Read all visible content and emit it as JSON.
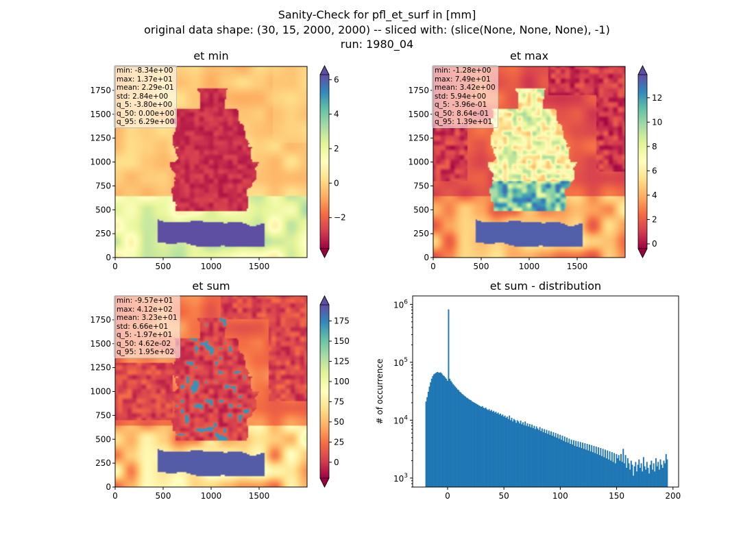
{
  "figure": {
    "title_line1": "Sanity-Check for pfl_et_surf in [mm]",
    "title_line2": "original data shape: (30, 15, 2000, 2000) -- sliced with: (slice(None, None, None), -1)",
    "title_line3": "run: 1980_04"
  },
  "chart_data": [
    {
      "type": "heatmap",
      "title": "et min",
      "colormap": "Spectral",
      "x_ticks": [
        "0",
        "500",
        "1000",
        "1500"
      ],
      "y_ticks": [
        "0",
        "250",
        "500",
        "750",
        "1000",
        "1250",
        "1500",
        "1750"
      ],
      "xlim": [
        0,
        2000
      ],
      "ylim": [
        0,
        2000
      ],
      "colorbar": {
        "range": [
          -3.8,
          6.29
        ],
        "ticks": [
          -2,
          0,
          2,
          4,
          6
        ],
        "tick_labels": [
          "−2",
          "0",
          "2",
          "4",
          "6"
        ],
        "extend": "both"
      },
      "stats": [
        "min: -8.34e+00",
        "max: 1.37e+01",
        "mean: 2.29e-01",
        "std: 2.84e+00",
        "q_5: -3.80e+00",
        "q_50: 0.00e+00",
        "q_95: 6.29e+00"
      ]
    },
    {
      "type": "heatmap",
      "title": "et max",
      "colormap": "Spectral",
      "x_ticks": [
        "0",
        "500",
        "1000",
        "1500"
      ],
      "y_ticks": [
        "0",
        "250",
        "500",
        "750",
        "1000",
        "1250",
        "1500",
        "1750"
      ],
      "xlim": [
        0,
        2000
      ],
      "ylim": [
        0,
        2000
      ],
      "colorbar": {
        "range": [
          -0.396,
          13.9
        ],
        "ticks": [
          0,
          2,
          4,
          6,
          8,
          10,
          12
        ],
        "tick_labels": [
          "0",
          "2",
          "4",
          "6",
          "8",
          "10",
          "12"
        ],
        "extend": "both"
      },
      "stats": [
        "min: -1.28e+00",
        "max: 7.49e+01",
        "mean: 3.42e+00",
        "std: 5.94e+00",
        "q_5: -3.96e-01",
        "q_50: 8.64e-01",
        "q_95: 1.39e+01"
      ]
    },
    {
      "type": "heatmap",
      "title": "et sum",
      "colormap": "Spectral",
      "x_ticks": [
        "0",
        "500",
        "1000",
        "1500"
      ],
      "y_ticks": [
        "0",
        "250",
        "500",
        "750",
        "1000",
        "1250",
        "1500",
        "1750"
      ],
      "xlim": [
        0,
        2000
      ],
      "ylim": [
        0,
        2000
      ],
      "colorbar": {
        "range": [
          -19.7,
          195
        ],
        "ticks": [
          0,
          25,
          50,
          75,
          100,
          125,
          150,
          175
        ],
        "tick_labels": [
          "0",
          "25",
          "50",
          "75",
          "100",
          "125",
          "150",
          "175"
        ],
        "extend": "both"
      },
      "stats": [
        "min: -9.57e+01",
        "max: 4.12e+02",
        "mean: 3.23e+01",
        "std: 6.66e+01",
        "q_5: -1.97e+01",
        "q_50: 4.62e-02",
        "q_95: 1.95e+02"
      ]
    },
    {
      "type": "bar",
      "title": "et sum - distribution",
      "xlabel": "",
      "ylabel": "# of occurrence",
      "yscale": "log",
      "xlim": [
        -31,
        205
      ],
      "ylim": [
        700,
        1400000
      ],
      "x_ticks": [
        "0",
        "50",
        "100",
        "150",
        "200"
      ],
      "y_tick_labels": [
        "10^3",
        "10^4",
        "10^5",
        "10^6"
      ],
      "color": "#1f77b4",
      "bin_width": 1.0,
      "bins": [
        [
          -19.7,
          21000
        ],
        [
          -18.7,
          25000
        ],
        [
          -17.7,
          31000
        ],
        [
          -16.7,
          38000
        ],
        [
          -15.7,
          45000
        ],
        [
          -14.7,
          52000
        ],
        [
          -13.7,
          58000
        ],
        [
          -12.7,
          62000
        ],
        [
          -11.7,
          64000
        ],
        [
          -10.7,
          66000
        ],
        [
          -9.7,
          68000
        ],
        [
          -8.7,
          67000
        ],
        [
          -7.7,
          66000
        ],
        [
          -6.7,
          67000
        ],
        [
          -5.7,
          64000
        ],
        [
          -4.7,
          60000
        ],
        [
          -3.7,
          58000
        ],
        [
          -2.7,
          55000
        ],
        [
          -1.7,
          52000
        ],
        [
          -0.7,
          48000
        ],
        [
          0.3,
          820000
        ],
        [
          1.3,
          52000
        ],
        [
          2.3,
          48000
        ],
        [
          3.3,
          45000
        ],
        [
          4.3,
          42000
        ],
        [
          5.3,
          40000
        ],
        [
          6.3,
          38000
        ],
        [
          7.3,
          36000
        ],
        [
          8.3,
          34000
        ],
        [
          9.3,
          33000
        ],
        [
          10.3,
          31000
        ],
        [
          11.3,
          30000
        ],
        [
          12.3,
          28500
        ],
        [
          13.3,
          27500
        ],
        [
          14.3,
          26500
        ],
        [
          15.3,
          25500
        ],
        [
          16.3,
          24500
        ],
        [
          17.3,
          24000
        ],
        [
          18.3,
          23000
        ],
        [
          19.3,
          22500
        ],
        [
          20.3,
          22000
        ],
        [
          21.3,
          21000
        ],
        [
          22.3,
          20500
        ],
        [
          23.3,
          20000
        ],
        [
          24.3,
          19500
        ],
        [
          25.3,
          19000
        ],
        [
          26.3,
          18500
        ],
        [
          27.3,
          18000
        ],
        [
          28.3,
          17500
        ],
        [
          29.3,
          17000
        ],
        [
          30.3,
          17500
        ],
        [
          31.3,
          16500
        ],
        [
          32.3,
          16000
        ],
        [
          33.3,
          16500
        ],
        [
          34.3,
          15500
        ],
        [
          35.3,
          15000
        ],
        [
          36.3,
          15500
        ],
        [
          37.3,
          14500
        ],
        [
          38.3,
          15000
        ],
        [
          39.3,
          14000
        ],
        [
          40.3,
          14500
        ],
        [
          41.3,
          13500
        ],
        [
          42.3,
          14000
        ],
        [
          43.3,
          13000
        ],
        [
          44.3,
          13500
        ],
        [
          45.3,
          12500
        ],
        [
          46.3,
          13000
        ],
        [
          47.3,
          12000
        ],
        [
          48.3,
          12500
        ],
        [
          49.3,
          11500
        ],
        [
          50.3,
          12000
        ],
        [
          51.3,
          11000
        ],
        [
          52.3,
          11500
        ],
        [
          53.3,
          10500
        ],
        [
          54.3,
          12000
        ],
        [
          55.3,
          10000
        ],
        [
          56.3,
          11000
        ],
        [
          57.3,
          9500
        ],
        [
          58.3,
          10500
        ],
        [
          59.3,
          10000
        ],
        [
          60.3,
          9000
        ],
        [
          61.3,
          10000
        ],
        [
          62.3,
          9500
        ],
        [
          63.3,
          8800
        ],
        [
          64.3,
          9800
        ],
        [
          65.3,
          8500
        ],
        [
          66.3,
          9200
        ],
        [
          67.3,
          8200
        ],
        [
          68.3,
          9500
        ],
        [
          69.3,
          8000
        ],
        [
          70.3,
          8800
        ],
        [
          71.3,
          7800
        ],
        [
          72.3,
          8600
        ],
        [
          73.3,
          7500
        ],
        [
          74.3,
          8400
        ],
        [
          75.3,
          7300
        ],
        [
          76.3,
          8000
        ],
        [
          77.3,
          7000
        ],
        [
          78.3,
          7800
        ],
        [
          79.3,
          7200
        ],
        [
          80.3,
          6800
        ],
        [
          81.3,
          7600
        ],
        [
          82.3,
          6500
        ],
        [
          83.3,
          7200
        ],
        [
          84.3,
          6200
        ],
        [
          85.3,
          7000
        ],
        [
          86.3,
          6000
        ],
        [
          87.3,
          6800
        ],
        [
          88.3,
          5800
        ],
        [
          89.3,
          6600
        ],
        [
          90.3,
          5600
        ],
        [
          91.3,
          6400
        ],
        [
          92.3,
          5400
        ],
        [
          93.3,
          6200
        ],
        [
          94.3,
          5200
        ],
        [
          95.3,
          6000
        ],
        [
          96.3,
          5000
        ],
        [
          97.3,
          5800
        ],
        [
          98.3,
          4800
        ],
        [
          99.3,
          5600
        ],
        [
          100.3,
          4600
        ],
        [
          101.3,
          5400
        ],
        [
          102.3,
          4400
        ],
        [
          103.3,
          5200
        ],
        [
          104.3,
          4200
        ],
        [
          105.3,
          5000
        ],
        [
          106.3,
          4100
        ],
        [
          107.3,
          4800
        ],
        [
          108.3,
          3900
        ],
        [
          109.3,
          4600
        ],
        [
          110.3,
          3800
        ],
        [
          111.3,
          4500
        ],
        [
          112.3,
          3600
        ],
        [
          113.3,
          4400
        ],
        [
          114.3,
          3500
        ],
        [
          115.3,
          4300
        ],
        [
          116.3,
          3400
        ],
        [
          117.3,
          4200
        ],
        [
          118.3,
          3300
        ],
        [
          119.3,
          4100
        ],
        [
          120.3,
          3200
        ],
        [
          121.3,
          4000
        ],
        [
          122.3,
          3100
        ],
        [
          123.3,
          3900
        ],
        [
          124.3,
          3000
        ],
        [
          125.3,
          3800
        ],
        [
          126.3,
          2900
        ],
        [
          127.3,
          3700
        ],
        [
          128.3,
          2800
        ],
        [
          129.3,
          3600
        ],
        [
          130.3,
          2700
        ],
        [
          131.3,
          3500
        ],
        [
          132.3,
          2600
        ],
        [
          133.3,
          3400
        ],
        [
          134.3,
          2500
        ],
        [
          135.3,
          3300
        ],
        [
          136.3,
          2400
        ],
        [
          137.3,
          3200
        ],
        [
          138.3,
          2300
        ],
        [
          139.3,
          3100
        ],
        [
          140.3,
          2200
        ],
        [
          141.3,
          3000
        ],
        [
          142.3,
          2100
        ],
        [
          143.3,
          2900
        ],
        [
          144.3,
          2000
        ],
        [
          145.3,
          2800
        ],
        [
          146.3,
          1900
        ],
        [
          147.3,
          2700
        ],
        [
          148.3,
          1800
        ],
        [
          149.3,
          2600
        ],
        [
          150.3,
          2200
        ],
        [
          151.3,
          2500
        ],
        [
          152.3,
          2000
        ],
        [
          153.3,
          2600
        ],
        [
          154.3,
          1900
        ],
        [
          155.3,
          3200
        ],
        [
          156.3,
          1800
        ],
        [
          157.3,
          2500
        ],
        [
          158.3,
          1500
        ],
        [
          159.3,
          2200
        ],
        [
          160.3,
          1800
        ],
        [
          161.3,
          1400
        ],
        [
          162.3,
          2000
        ],
        [
          163.3,
          1700
        ],
        [
          164.3,
          1100
        ],
        [
          165.3,
          1600
        ],
        [
          166.3,
          1900
        ],
        [
          167.3,
          1300
        ],
        [
          168.3,
          1700
        ],
        [
          169.3,
          2100
        ],
        [
          170.3,
          1500
        ],
        [
          171.3,
          1800
        ],
        [
          172.3,
          1300
        ],
        [
          173.3,
          2300
        ],
        [
          174.3,
          1600
        ],
        [
          175.3,
          1400
        ],
        [
          176.3,
          1900
        ],
        [
          177.3,
          1500
        ],
        [
          178.3,
          1200
        ],
        [
          179.3,
          1700
        ],
        [
          180.3,
          2000
        ],
        [
          181.3,
          1400
        ],
        [
          182.3,
          1800
        ],
        [
          183.3,
          1300
        ],
        [
          184.3,
          2200
        ],
        [
          185.3,
          1600
        ],
        [
          186.3,
          1900
        ],
        [
          187.3,
          1400
        ],
        [
          188.3,
          2100
        ],
        [
          189.3,
          1700
        ],
        [
          190.3,
          1500
        ],
        [
          191.3,
          2000
        ],
        [
          192.3,
          1800
        ],
        [
          193.3,
          2600
        ],
        [
          194.3,
          2100
        ]
      ]
    }
  ]
}
